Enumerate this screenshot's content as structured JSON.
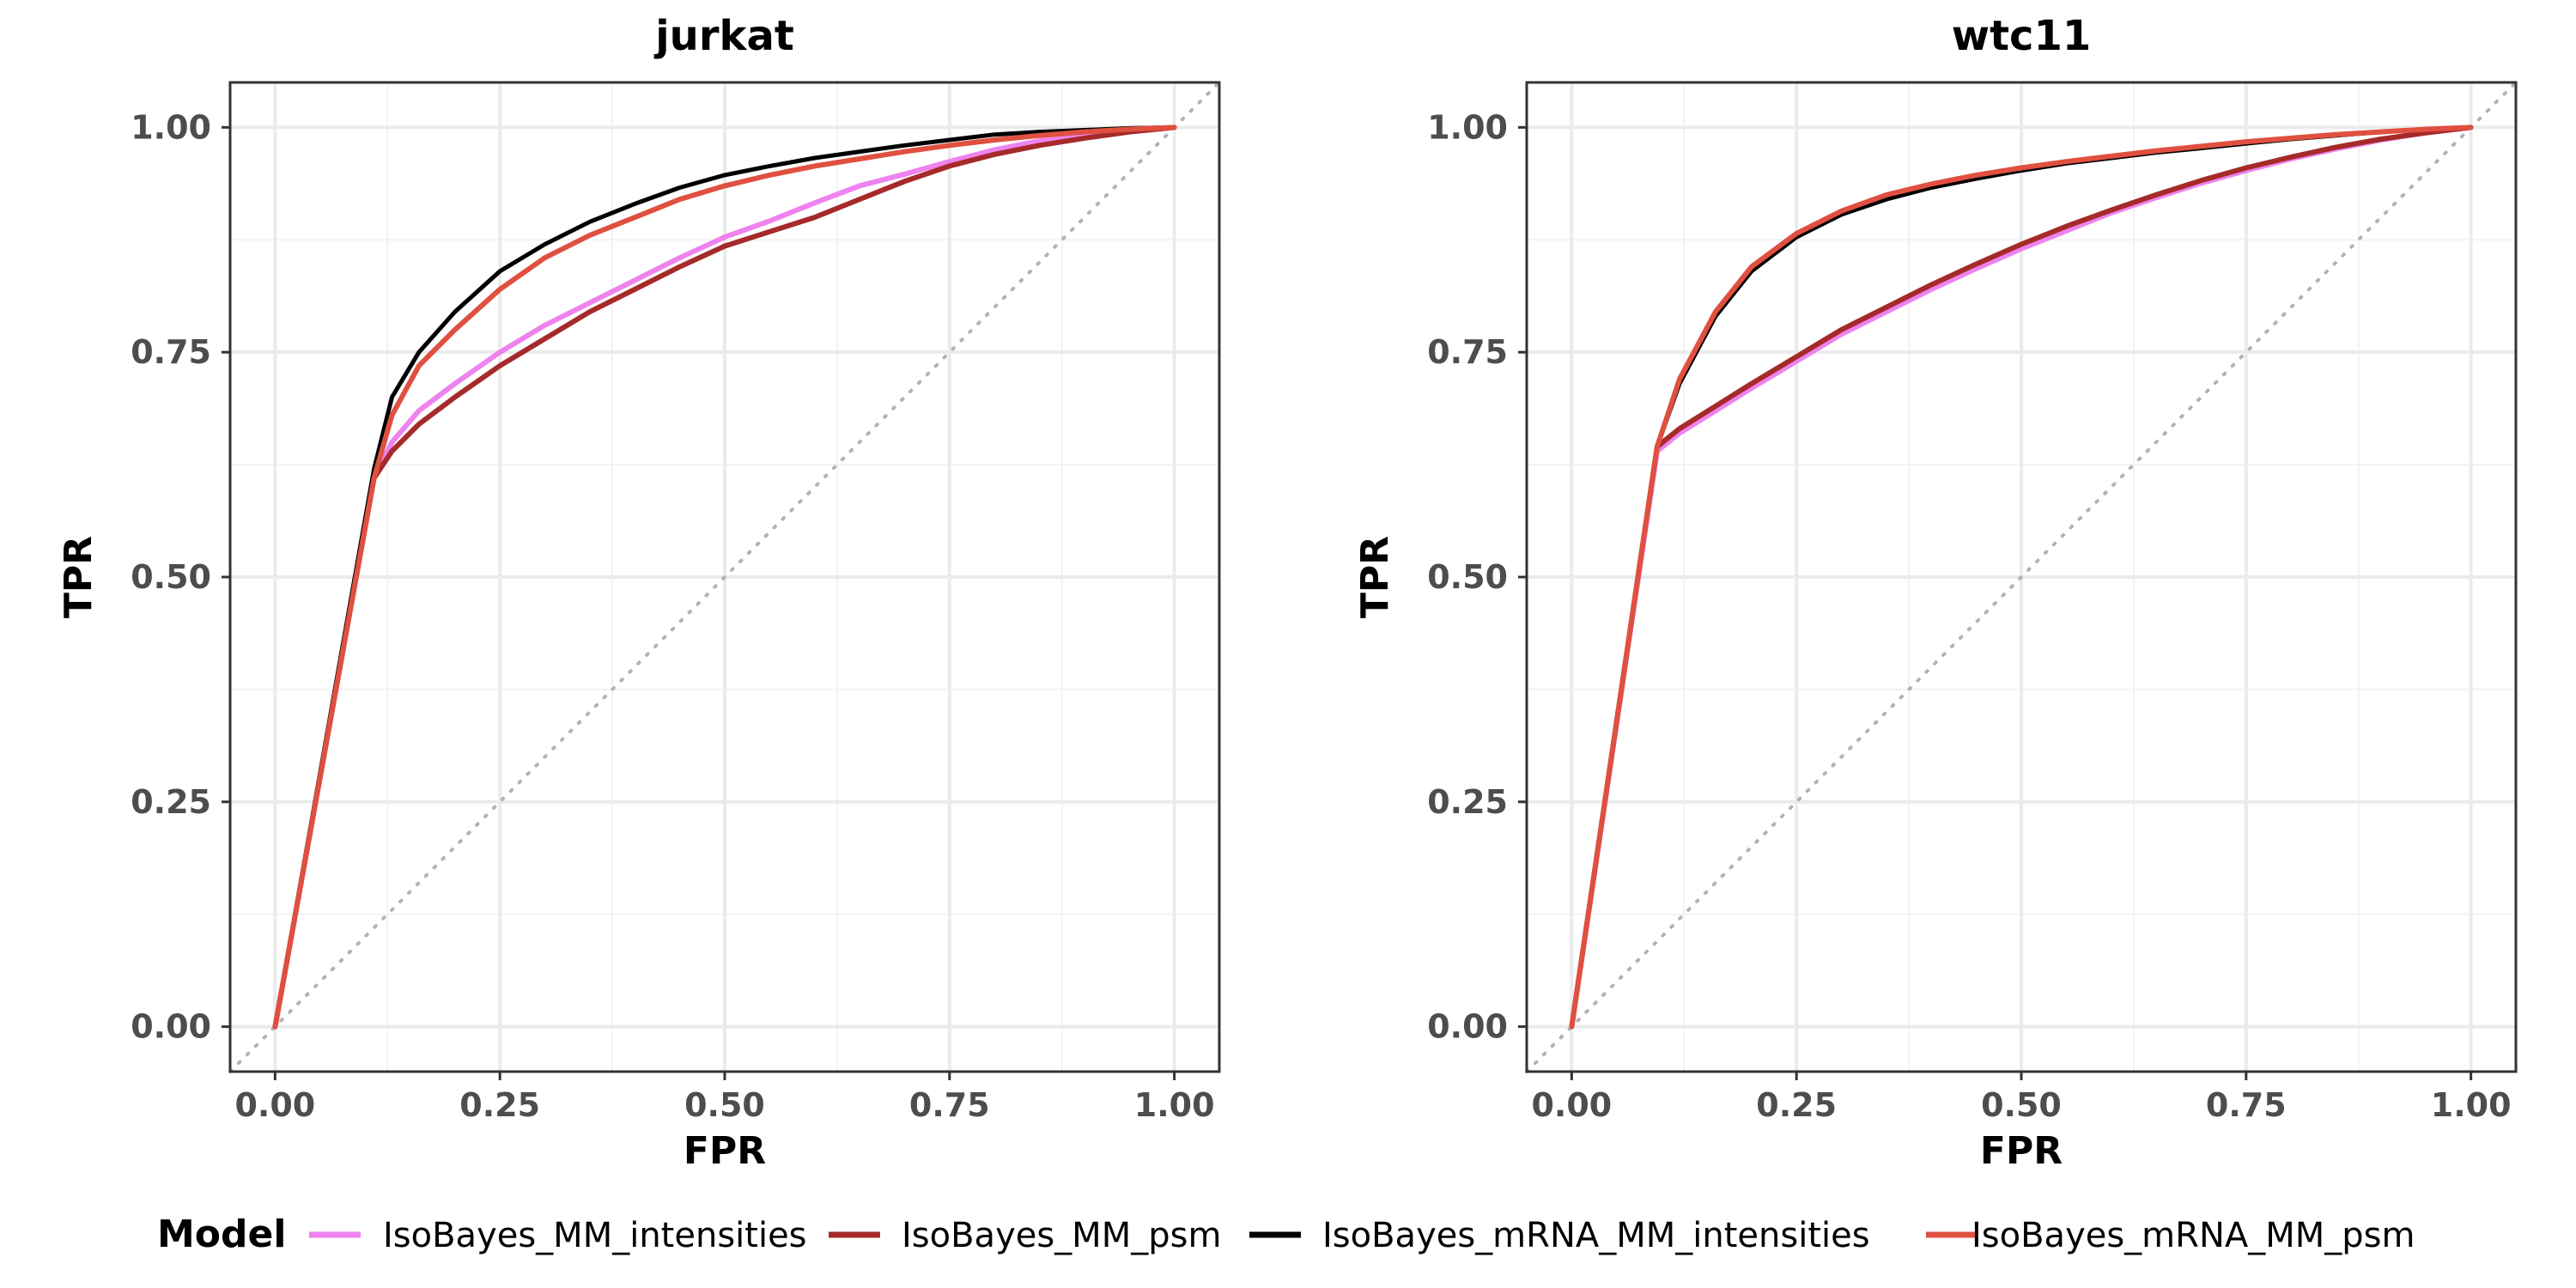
{
  "chart_data": [
    {
      "type": "line",
      "title": "jurkat",
      "xlabel": "FPR",
      "ylabel": "TPR",
      "xlim": [
        -0.05,
        1.05
      ],
      "ylim": [
        -0.05,
        1.05
      ],
      "xticks": [
        "0.00",
        "0.25",
        "0.50",
        "0.75",
        "1.00"
      ],
      "yticks": [
        "0.00",
        "0.25",
        "0.50",
        "0.75",
        "1.00"
      ],
      "grid": true,
      "reference_diagonal": true,
      "series": [
        {
          "name": "IsoBayes_MM_intensities",
          "color": "#ee82ee",
          "x": [
            0.0,
            0.11,
            0.13,
            0.16,
            0.2,
            0.25,
            0.3,
            0.35,
            0.4,
            0.45,
            0.5,
            0.55,
            0.6,
            0.65,
            0.7,
            0.75,
            0.8,
            0.85,
            0.9,
            0.95,
            1.0
          ],
          "y": [
            0.0,
            0.61,
            0.65,
            0.685,
            0.715,
            0.75,
            0.78,
            0.805,
            0.83,
            0.855,
            0.878,
            0.896,
            0.916,
            0.935,
            0.948,
            0.962,
            0.975,
            0.985,
            0.992,
            0.996,
            1.0
          ]
        },
        {
          "name": "IsoBayes_MM_psm",
          "color": "#a52a2a",
          "x": [
            0.0,
            0.11,
            0.13,
            0.16,
            0.2,
            0.25,
            0.3,
            0.35,
            0.4,
            0.45,
            0.5,
            0.55,
            0.6,
            0.65,
            0.7,
            0.75,
            0.8,
            0.85,
            0.9,
            0.95,
            1.0
          ],
          "y": [
            0.0,
            0.61,
            0.64,
            0.67,
            0.7,
            0.735,
            0.765,
            0.795,
            0.82,
            0.845,
            0.868,
            0.884,
            0.9,
            0.92,
            0.94,
            0.957,
            0.97,
            0.98,
            0.988,
            0.995,
            1.0
          ]
        },
        {
          "name": "IsoBayes_mRNA_MM_intensities",
          "color": "#000000",
          "x": [
            0.0,
            0.11,
            0.13,
            0.16,
            0.2,
            0.25,
            0.3,
            0.35,
            0.4,
            0.45,
            0.5,
            0.55,
            0.6,
            0.65,
            0.7,
            0.75,
            0.8,
            0.85,
            0.9,
            0.95,
            1.0
          ],
          "y": [
            0.0,
            0.62,
            0.7,
            0.75,
            0.795,
            0.84,
            0.87,
            0.895,
            0.915,
            0.933,
            0.947,
            0.957,
            0.966,
            0.973,
            0.98,
            0.986,
            0.992,
            0.995,
            0.997,
            0.999,
            1.0
          ]
        },
        {
          "name": "IsoBayes_mRNA_MM_psm",
          "color": "#e05040",
          "x": [
            0.0,
            0.11,
            0.13,
            0.16,
            0.2,
            0.25,
            0.3,
            0.35,
            0.4,
            0.45,
            0.5,
            0.55,
            0.6,
            0.65,
            0.7,
            0.75,
            0.8,
            0.85,
            0.9,
            0.95,
            1.0
          ],
          "y": [
            0.0,
            0.61,
            0.68,
            0.735,
            0.775,
            0.82,
            0.855,
            0.88,
            0.9,
            0.92,
            0.935,
            0.947,
            0.957,
            0.965,
            0.973,
            0.98,
            0.986,
            0.991,
            0.995,
            0.998,
            1.0
          ]
        }
      ]
    },
    {
      "type": "line",
      "title": "wtc11",
      "xlabel": "FPR",
      "ylabel": "TPR",
      "xlim": [
        -0.05,
        1.05
      ],
      "ylim": [
        -0.05,
        1.05
      ],
      "xticks": [
        "0.00",
        "0.25",
        "0.50",
        "0.75",
        "1.00"
      ],
      "yticks": [
        "0.00",
        "0.25",
        "0.50",
        "0.75",
        "1.00"
      ],
      "grid": true,
      "reference_diagonal": true,
      "series": [
        {
          "name": "IsoBayes_MM_intensities",
          "color": "#ee82ee",
          "x": [
            0.0,
            0.095,
            0.12,
            0.16,
            0.2,
            0.25,
            0.3,
            0.35,
            0.4,
            0.45,
            0.5,
            0.55,
            0.6,
            0.65,
            0.7,
            0.75,
            0.8,
            0.85,
            0.9,
            0.95,
            1.0
          ],
          "y": [
            0.0,
            0.64,
            0.66,
            0.685,
            0.71,
            0.74,
            0.77,
            0.795,
            0.82,
            0.843,
            0.865,
            0.885,
            0.905,
            0.922,
            0.938,
            0.952,
            0.965,
            0.976,
            0.986,
            0.994,
            1.0
          ]
        },
        {
          "name": "IsoBayes_MM_psm",
          "color": "#a52a2a",
          "x": [
            0.0,
            0.095,
            0.12,
            0.16,
            0.2,
            0.25,
            0.3,
            0.35,
            0.4,
            0.45,
            0.5,
            0.55,
            0.6,
            0.65,
            0.7,
            0.75,
            0.8,
            0.85,
            0.9,
            0.95,
            1.0
          ],
          "y": [
            0.0,
            0.645,
            0.665,
            0.69,
            0.715,
            0.745,
            0.775,
            0.8,
            0.825,
            0.848,
            0.87,
            0.89,
            0.908,
            0.925,
            0.941,
            0.955,
            0.967,
            0.978,
            0.987,
            0.994,
            1.0
          ]
        },
        {
          "name": "IsoBayes_mRNA_MM_intensities",
          "color": "#000000",
          "x": [
            0.0,
            0.095,
            0.12,
            0.16,
            0.2,
            0.25,
            0.3,
            0.35,
            0.4,
            0.45,
            0.5,
            0.55,
            0.6,
            0.65,
            0.7,
            0.75,
            0.8,
            0.85,
            0.9,
            0.95,
            1.0
          ],
          "y": [
            0.0,
            0.645,
            0.715,
            0.79,
            0.84,
            0.878,
            0.903,
            0.92,
            0.933,
            0.943,
            0.952,
            0.96,
            0.966,
            0.972,
            0.977,
            0.982,
            0.987,
            0.991,
            0.995,
            0.998,
            1.0
          ]
        },
        {
          "name": "IsoBayes_mRNA_MM_psm",
          "color": "#e05040",
          "x": [
            0.0,
            0.095,
            0.12,
            0.16,
            0.2,
            0.25,
            0.3,
            0.35,
            0.4,
            0.45,
            0.5,
            0.55,
            0.6,
            0.65,
            0.7,
            0.75,
            0.8,
            0.85,
            0.9,
            0.95,
            1.0
          ],
          "y": [
            0.0,
            0.645,
            0.72,
            0.795,
            0.845,
            0.882,
            0.907,
            0.925,
            0.937,
            0.947,
            0.955,
            0.962,
            0.968,
            0.974,
            0.979,
            0.984,
            0.988,
            0.992,
            0.995,
            0.998,
            1.0
          ]
        }
      ]
    }
  ],
  "legend": {
    "title": "Model",
    "placement": "bottom",
    "items": [
      {
        "label": "IsoBayes_MM_intensities",
        "color": "#ee82ee"
      },
      {
        "label": "IsoBayes_MM_psm",
        "color": "#a52a2a"
      },
      {
        "label": "IsoBayes_mRNA_MM_intensities",
        "color": "#000000"
      },
      {
        "label": "IsoBayes_mRNA_MM_psm",
        "color": "#e05040"
      }
    ]
  }
}
